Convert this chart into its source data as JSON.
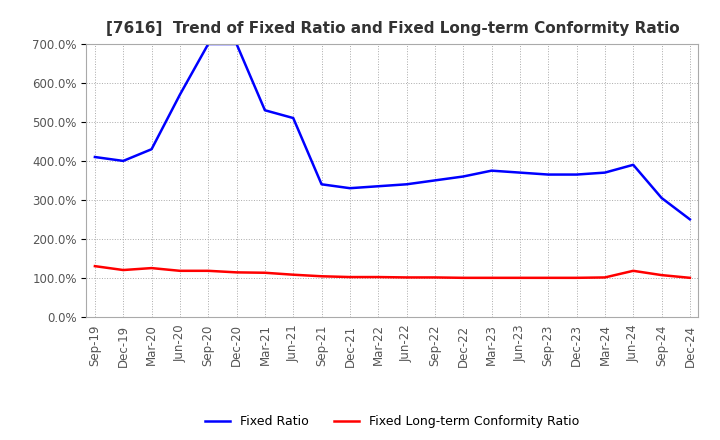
{
  "title": "[7616]  Trend of Fixed Ratio and Fixed Long-term Conformity Ratio",
  "x_labels": [
    "Sep-19",
    "Dec-19",
    "Mar-20",
    "Jun-20",
    "Sep-20",
    "Dec-20",
    "Mar-21",
    "Jun-21",
    "Sep-21",
    "Dec-21",
    "Mar-22",
    "Jun-22",
    "Sep-22",
    "Dec-22",
    "Mar-23",
    "Jun-23",
    "Sep-23",
    "Dec-23",
    "Mar-24",
    "Jun-24",
    "Sep-24",
    "Dec-24"
  ],
  "fixed_ratio": [
    410,
    400,
    430,
    570,
    700,
    700,
    530,
    510,
    340,
    330,
    335,
    340,
    350,
    360,
    375,
    370,
    365,
    365,
    370,
    390,
    305,
    250
  ],
  "fixed_lt_ratio": [
    130,
    120,
    125,
    118,
    118,
    114,
    113,
    108,
    104,
    102,
    102,
    101,
    101,
    100,
    100,
    100,
    100,
    100,
    101,
    118,
    107,
    100
  ],
  "ylim": [
    0,
    700
  ],
  "yticks": [
    0,
    100,
    200,
    300,
    400,
    500,
    600,
    700
  ],
  "fixed_ratio_color": "#0000FF",
  "fixed_lt_ratio_color": "#FF0000",
  "grid_color": "#AAAAAA",
  "background_color": "#FFFFFF",
  "legend_fixed_ratio": "Fixed Ratio",
  "legend_fixed_lt_ratio": "Fixed Long-term Conformity Ratio",
  "title_fontsize": 11,
  "tick_fontsize": 8.5,
  "legend_fontsize": 9
}
